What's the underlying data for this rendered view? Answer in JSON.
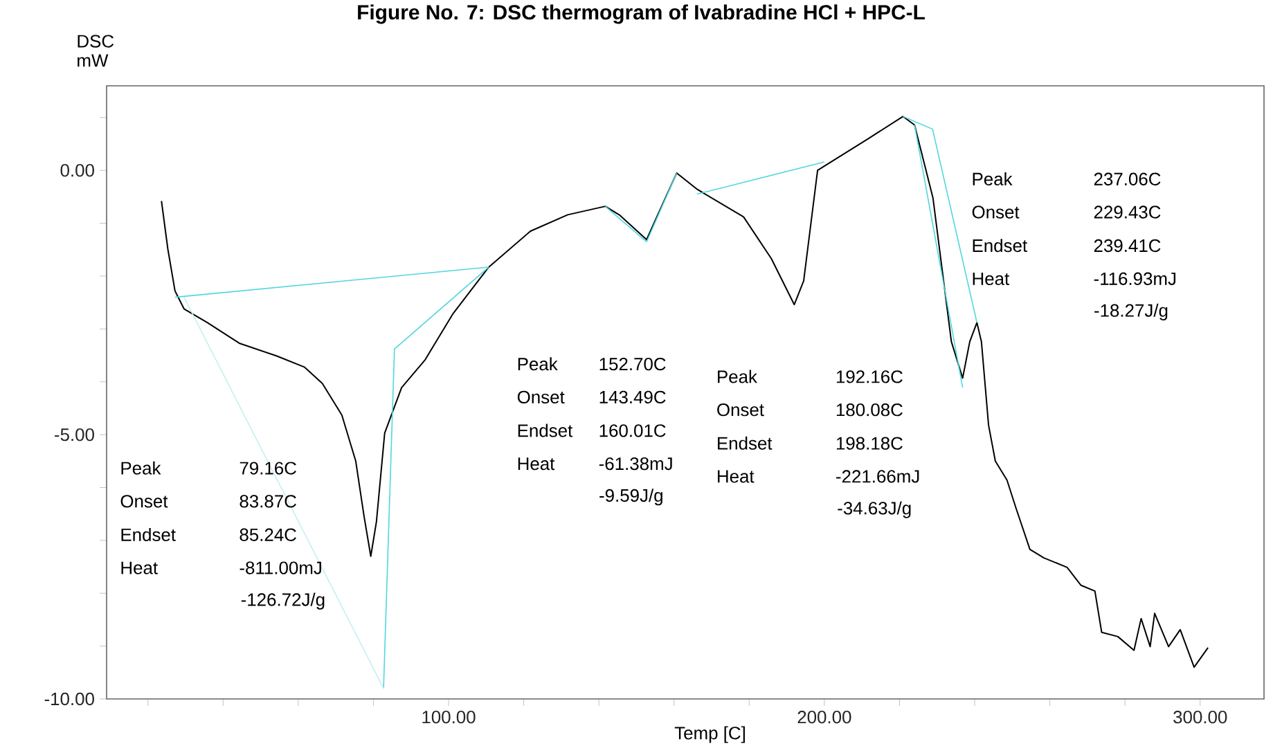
{
  "chart_data": {
    "type": "line",
    "title": "Figure No. 7: DSC thermogram of Ivabradine HCl + HPC-L",
    "xlabel": "Temp [C]",
    "ylabel": "DSC mW",
    "xlim": [
      9,
      317
    ],
    "ylim": [
      -10,
      1.6
    ],
    "xticks": [
      {
        "value": 20,
        "label": null
      },
      {
        "value": 40,
        "label": null
      },
      {
        "value": 60,
        "label": null
      },
      {
        "value": 80,
        "label": null
      },
      {
        "value": 100,
        "label": "100.00"
      },
      {
        "value": 120,
        "label": null
      },
      {
        "value": 140,
        "label": null
      },
      {
        "value": 160,
        "label": null
      },
      {
        "value": 180,
        "label": null
      },
      {
        "value": 200,
        "label": "200.00"
      },
      {
        "value": 220,
        "label": null
      },
      {
        "value": 240,
        "label": null
      },
      {
        "value": 260,
        "label": null
      },
      {
        "value": 280,
        "label": null
      },
      {
        "value": 300,
        "label": "300.00"
      }
    ],
    "yticks": [
      {
        "value": -10,
        "label": "-10.00"
      },
      {
        "value": -9,
        "label": null
      },
      {
        "value": -8,
        "label": null
      },
      {
        "value": -7,
        "label": null
      },
      {
        "value": -6,
        "label": null
      },
      {
        "value": -5,
        "label": "-5.00"
      },
      {
        "value": -4,
        "label": null
      },
      {
        "value": -3,
        "label": null
      },
      {
        "value": -2,
        "label": null
      },
      {
        "value": -1,
        "label": null
      },
      {
        "value": 0,
        "label": "0.00"
      },
      {
        "value": 1,
        "label": null
      }
    ],
    "grid": false,
    "marker": "none",
    "line_style": "solid",
    "series": [
      {
        "color": "#000000",
        "x": [
          23.6,
          25.3,
          27.2,
          29.6,
          35.8,
          44.3,
          54.2,
          61.6,
          66.4,
          71.6,
          75.3,
          77.5,
          79.3,
          80.8,
          83.0,
          87.5,
          93.7,
          101.1,
          110.7,
          121.8,
          131.7,
          141.7,
          145.4,
          152.7,
          160.7,
          166.2,
          178.5,
          185.9,
          192.0,
          194.5,
          198.2,
          211.7,
          220.9,
          224.0,
          228.9,
          233.8,
          236.8,
          238.7,
          240.6,
          241.8,
          243.7,
          245.5,
          248.6,
          251.0,
          254.7,
          258.4,
          264.6,
          268.3,
          272.0,
          273.8,
          278.1,
          282.4,
          284.3,
          286.7,
          287.9,
          291.6,
          294.7,
          298.4,
          302.1
        ],
        "values": [
          -0.58,
          -1.49,
          -2.28,
          -2.62,
          -2.88,
          -3.27,
          -3.51,
          -3.72,
          -4.03,
          -4.63,
          -5.5,
          -6.54,
          -7.3,
          -6.65,
          -4.97,
          -4.11,
          -3.59,
          -2.72,
          -1.83,
          -1.15,
          -0.84,
          -0.68,
          -0.84,
          -1.31,
          -0.05,
          -0.36,
          -0.88,
          -1.67,
          -2.54,
          -2.09,
          0.0,
          0.6,
          1.02,
          0.86,
          -0.52,
          -3.24,
          -3.93,
          -3.24,
          -2.88,
          -3.24,
          -4.82,
          -5.5,
          -5.86,
          -6.39,
          -7.17,
          -7.33,
          -7.51,
          -7.85,
          -7.96,
          -8.74,
          -8.82,
          -9.08,
          -8.48,
          -9.01,
          -8.38,
          -9.01,
          -8.69,
          -9.4,
          -9.03
        ]
      },
      {
        "color": "#4fd6df",
        "x": [
          27.2,
          110.7
        ],
        "values": [
          -2.4,
          -1.83
        ]
      },
      {
        "color": "#4fd6df",
        "x": [
          82.7,
          85.6,
          110.7
        ],
        "values": [
          -9.8,
          -3.38,
          -1.83
        ]
      },
      {
        "color": "#c4eff2",
        "x": [
          29.6,
          82.7
        ],
        "values": [
          -2.4,
          -9.8
        ]
      },
      {
        "color": "#4fd6df",
        "x": [
          141.7,
          152.7,
          160.7
        ],
        "values": [
          -0.68,
          -1.35,
          -0.05
        ]
      },
      {
        "color": "#4fd6df",
        "x": [
          166.1,
          200.0
        ],
        "values": [
          -0.45,
          0.16
        ]
      },
      {
        "color": "#4fd6df",
        "x": [
          220.9,
          228.8,
          240.6
        ],
        "values": [
          1.02,
          0.78,
          -2.88
        ]
      },
      {
        "color": "#4fd6df",
        "x": [
          224.0,
          236.8
        ],
        "values": [
          0.86,
          -4.11
        ]
      }
    ],
    "annotations": [
      "Peak 79.16C",
      "Onset 83.87C",
      "Endset 85.24C",
      "Heat -811.00mJ",
      "-126.72J/g",
      "Peak 152.70C",
      "Onset 143.49C",
      "Endset 160.01C",
      "Heat -61.38mJ",
      "-9.59J/g",
      "Peak 192.16C",
      "Onset 180.08C",
      "Endset 198.18C",
      "Heat -221.66mJ",
      "-34.63J/g",
      "Peak 237.06C",
      "Onset 229.43C",
      "Endset 239.41C",
      "Heat -116.93mJ",
      "-18.27J/g"
    ]
  }
}
